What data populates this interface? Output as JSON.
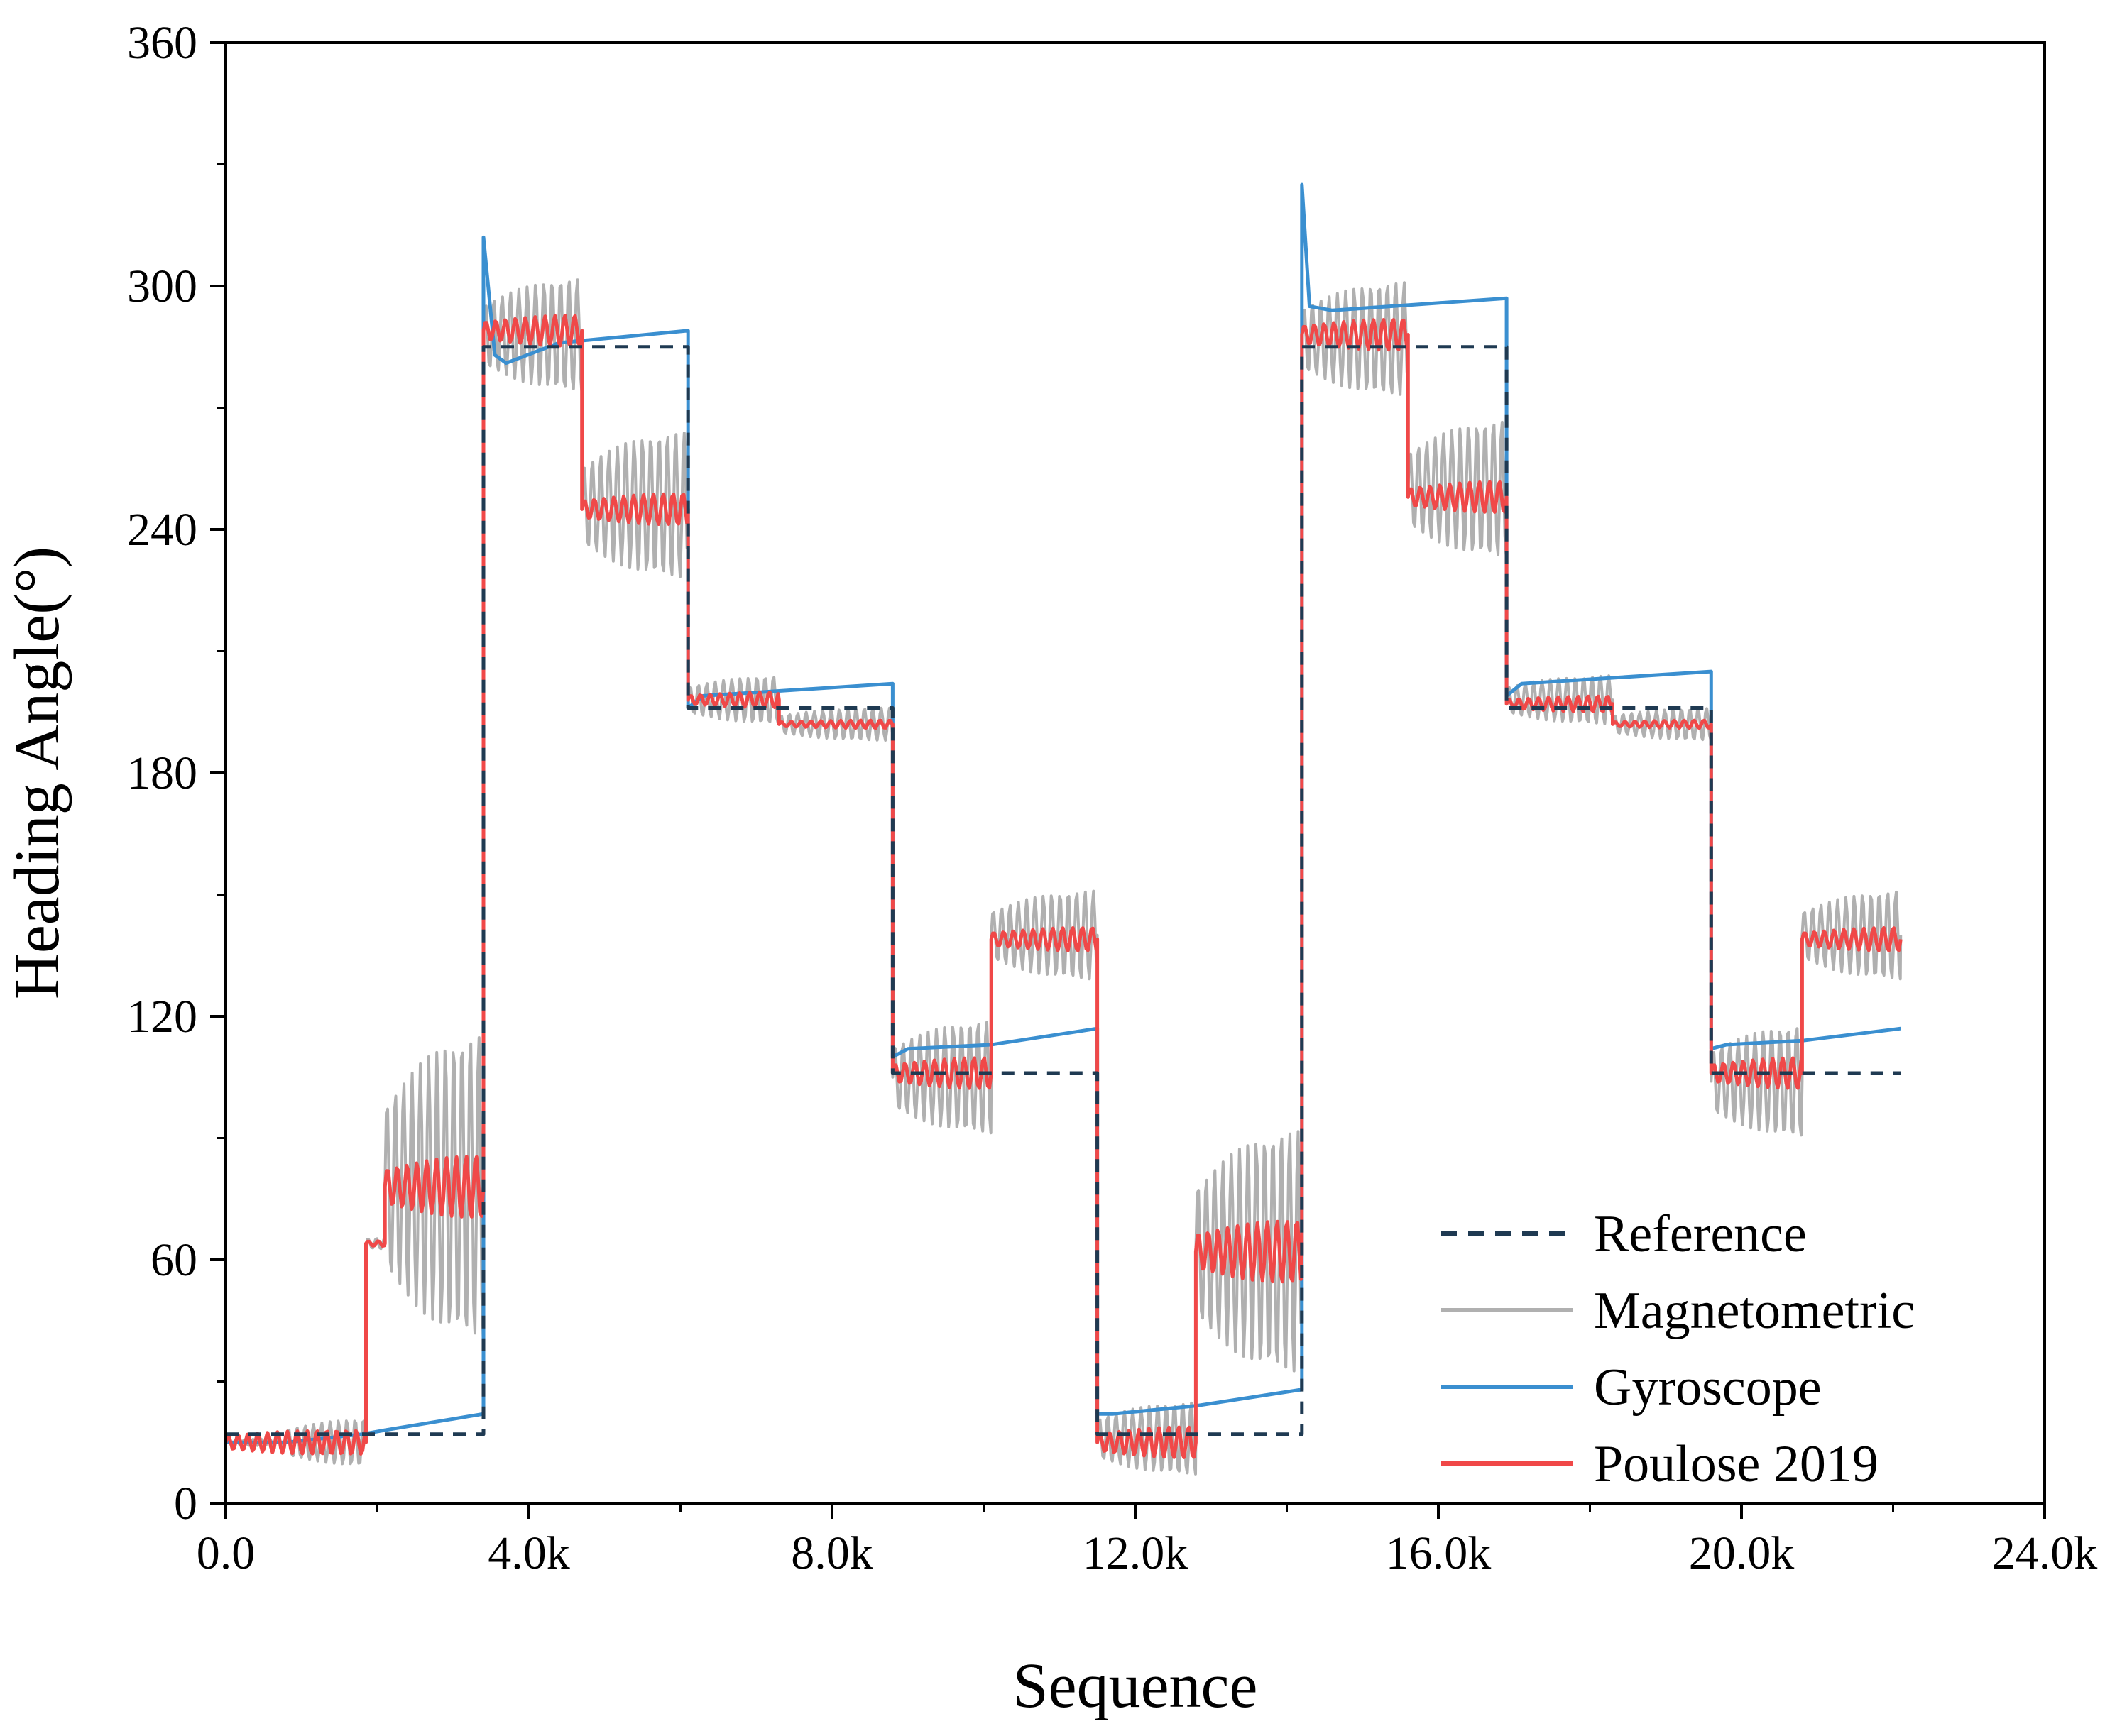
{
  "chart_data": {
    "type": "line",
    "title": "",
    "xlabel": "Sequence",
    "ylabel": "Heading Angle(°)",
    "xlim": [
      0,
      24000
    ],
    "ylim": [
      0,
      360
    ],
    "x_ticks": [
      0,
      4000,
      8000,
      12000,
      16000,
      20000,
      24000
    ],
    "x_tick_labels": [
      "0.0",
      "4.0k",
      "8.0k",
      "12.0k",
      "16.0k",
      "20.0k",
      "24.0k"
    ],
    "y_ticks": [
      0,
      60,
      120,
      180,
      240,
      300,
      360
    ],
    "y_tick_labels": [
      "0",
      "60",
      "120",
      "180",
      "240",
      "300",
      "360"
    ],
    "legend_position": "bottom-right",
    "series": [
      {
        "name": "Reference",
        "style": "dashed",
        "color": "#1f3a52",
        "points": [
          [
            0,
            17
          ],
          [
            3400,
            17
          ],
          [
            3400,
            285
          ],
          [
            6100,
            285
          ],
          [
            6100,
            196
          ],
          [
            8800,
            196
          ],
          [
            8800,
            106
          ],
          [
            11500,
            106
          ],
          [
            11500,
            17
          ],
          [
            14200,
            17
          ],
          [
            14200,
            285
          ],
          [
            16900,
            285
          ],
          [
            16900,
            196
          ],
          [
            19600,
            196
          ],
          [
            19600,
            106
          ],
          [
            22100,
            106
          ]
        ]
      },
      {
        "name": "Magnetometric",
        "style": "solid",
        "color": "#b0b0b0",
        "segments": [
          {
            "x_start": 0,
            "x_end": 800,
            "center": 15,
            "amplitude": 1
          },
          {
            "x_start": 800,
            "x_end": 1850,
            "center": 15,
            "amplitude": 6
          },
          {
            "x_start": 1850,
            "x_end": 2100,
            "center": 64,
            "amplitude": 2
          },
          {
            "x_start": 2100,
            "x_end": 3400,
            "center": 78,
            "amplitude": 38
          },
          {
            "x_start": 3400,
            "x_end": 4700,
            "center": 288,
            "amplitude": 14
          },
          {
            "x_start": 4700,
            "x_end": 6100,
            "center": 246,
            "amplitude": 18
          },
          {
            "x_start": 6100,
            "x_end": 7300,
            "center": 198,
            "amplitude": 6
          },
          {
            "x_start": 7300,
            "x_end": 8800,
            "center": 192,
            "amplitude": 4
          },
          {
            "x_start": 8800,
            "x_end": 10100,
            "center": 105,
            "amplitude": 14
          },
          {
            "x_start": 10100,
            "x_end": 11500,
            "center": 140,
            "amplitude": 11
          },
          {
            "x_start": 11500,
            "x_end": 12800,
            "center": 16,
            "amplitude": 9
          },
          {
            "x_start": 12800,
            "x_end": 14200,
            "center": 62,
            "amplitude": 30
          },
          {
            "x_start": 14200,
            "x_end": 15600,
            "center": 287,
            "amplitude": 14
          },
          {
            "x_start": 15600,
            "x_end": 16900,
            "center": 250,
            "amplitude": 17
          },
          {
            "x_start": 16900,
            "x_end": 18300,
            "center": 198,
            "amplitude": 6
          },
          {
            "x_start": 18300,
            "x_end": 19600,
            "center": 192,
            "amplitude": 4
          },
          {
            "x_start": 19600,
            "x_end": 20800,
            "center": 104,
            "amplitude": 14
          },
          {
            "x_start": 20800,
            "x_end": 22100,
            "center": 140,
            "amplitude": 11
          }
        ]
      },
      {
        "name": "Gyroscope",
        "style": "solid",
        "color": "#3a8fd0",
        "points": [
          [
            0,
            15
          ],
          [
            800,
            15
          ],
          [
            1800,
            17
          ],
          [
            2100,
            18
          ],
          [
            3400,
            22
          ],
          [
            3400,
            312
          ],
          [
            3550,
            283
          ],
          [
            3700,
            281
          ],
          [
            4400,
            286
          ],
          [
            6100,
            289
          ],
          [
            6100,
            196
          ],
          [
            6300,
            199
          ],
          [
            8800,
            202
          ],
          [
            8800,
            110
          ],
          [
            9000,
            112
          ],
          [
            10100,
            113
          ],
          [
            11500,
            117
          ],
          [
            11500,
            22
          ],
          [
            11700,
            22
          ],
          [
            12800,
            24
          ],
          [
            14200,
            28
          ],
          [
            14200,
            325
          ],
          [
            14300,
            295
          ],
          [
            14600,
            294
          ],
          [
            16900,
            297
          ],
          [
            16900,
            199
          ],
          [
            17100,
            202
          ],
          [
            19600,
            205
          ],
          [
            19600,
            112
          ],
          [
            19800,
            113
          ],
          [
            20800,
            114
          ],
          [
            22100,
            117
          ]
        ]
      },
      {
        "name": "Poulose 2019",
        "style": "solid",
        "color": "#f04848",
        "segments": [
          {
            "x_start": 0,
            "x_end": 1850,
            "center": 15,
            "amplitude": 3
          },
          {
            "x_start": 1850,
            "x_end": 2100,
            "center": 64,
            "amplitude": 1
          },
          {
            "x_start": 2100,
            "x_end": 3400,
            "center": 78,
            "amplitude": 8
          },
          {
            "x_start": 3400,
            "x_end": 4700,
            "center": 289,
            "amplitude": 4
          },
          {
            "x_start": 4700,
            "x_end": 6100,
            "center": 245,
            "amplitude": 4
          },
          {
            "x_start": 6100,
            "x_end": 7300,
            "center": 198,
            "amplitude": 2
          },
          {
            "x_start": 7300,
            "x_end": 8800,
            "center": 192,
            "amplitude": 1
          },
          {
            "x_start": 8800,
            "x_end": 10100,
            "center": 106,
            "amplitude": 4
          },
          {
            "x_start": 10100,
            "x_end": 11500,
            "center": 139,
            "amplitude": 3
          },
          {
            "x_start": 11500,
            "x_end": 12800,
            "center": 15,
            "amplitude": 4
          },
          {
            "x_start": 12800,
            "x_end": 14200,
            "center": 62,
            "amplitude": 8
          },
          {
            "x_start": 14200,
            "x_end": 15600,
            "center": 288,
            "amplitude": 4
          },
          {
            "x_start": 15600,
            "x_end": 16900,
            "center": 248,
            "amplitude": 4
          },
          {
            "x_start": 16900,
            "x_end": 18300,
            "center": 197,
            "amplitude": 2
          },
          {
            "x_start": 18300,
            "x_end": 19600,
            "center": 192,
            "amplitude": 1
          },
          {
            "x_start": 19600,
            "x_end": 20800,
            "center": 106,
            "amplitude": 4
          },
          {
            "x_start": 20800,
            "x_end": 22100,
            "center": 139,
            "amplitude": 3
          }
        ]
      }
    ]
  }
}
